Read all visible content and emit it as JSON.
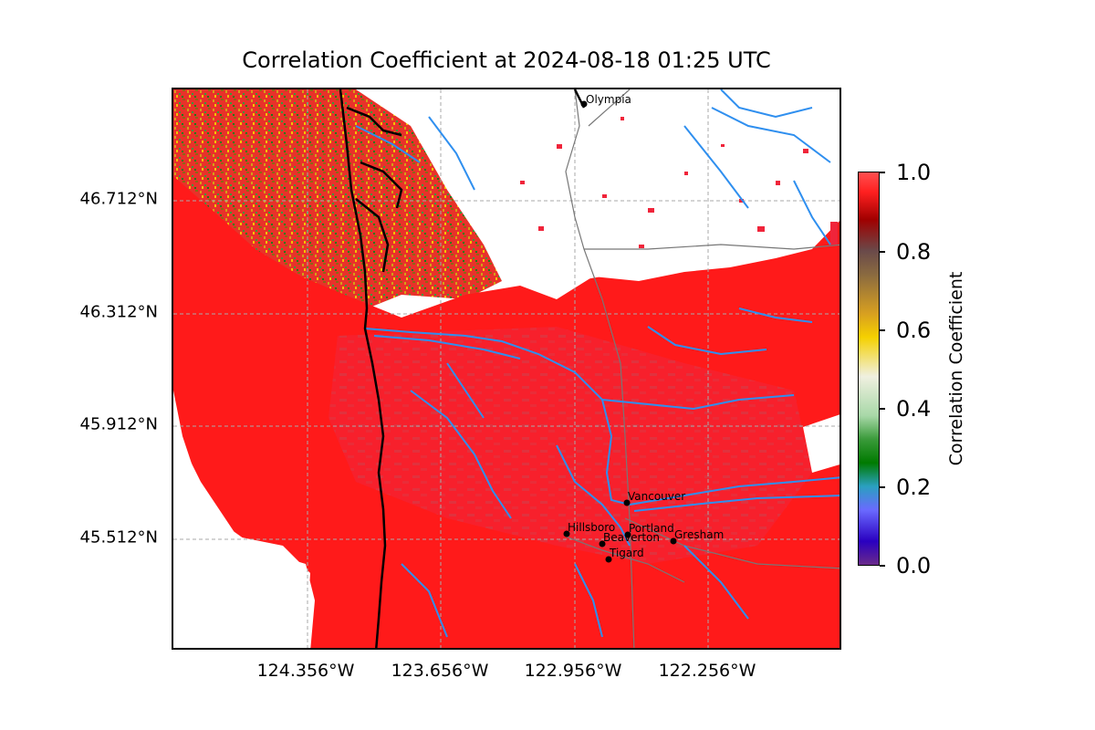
{
  "figure": {
    "title": "Correlation Coefficient at 2024-08-18 01:25 UTC"
  },
  "map": {
    "lat_ticks": [
      "46.712°N",
      "46.312°N",
      "45.912°N",
      "45.512°N"
    ],
    "lon_ticks": [
      "124.356°W",
      "123.656°W",
      "122.956°W",
      "122.256°W"
    ],
    "grid": true,
    "cities": [
      {
        "name": "Olympia"
      },
      {
        "name": "Vancouver"
      },
      {
        "name": "Hillsboro"
      },
      {
        "name": "Portland"
      },
      {
        "name": "Beaverton"
      },
      {
        "name": "Gresham"
      },
      {
        "name": "Tigard"
      }
    ]
  },
  "colorbar": {
    "label": "Correlation Coefficient",
    "ticks": [
      "0.0",
      "0.2",
      "0.4",
      "0.6",
      "0.8",
      "1.0"
    ],
    "range": [
      0.0,
      1.0
    ]
  },
  "colors": {
    "echo_high": "#ff1a1a",
    "echo_mid": "#d04a5a",
    "rivers": "#2f8fef",
    "coast": "#000000",
    "roads": "#777777"
  }
}
